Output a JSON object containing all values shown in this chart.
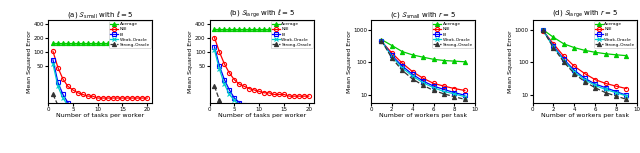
{
  "subplot_titles": [
    "(a) $\\mathcal{S}_{\\mathrm{small}}$ with $\\ell = 5$",
    "(b) $\\mathcal{S}_{\\mathrm{large}}$ with $\\ell = 5$",
    "(c) $\\mathcal{S}_{\\mathrm{small}}$ with $r = 5$",
    "(d) $\\mathcal{S}_{\\mathrm{large}}$ with $r = 5$"
  ],
  "xlabels": [
    "Number of tasks per worker",
    "Number of tasks per worker",
    "Number of workers per task",
    "Number of workers per task"
  ],
  "ylabel": "Mean Squared Error",
  "legend_labels": [
    "Average",
    "NBI",
    "BI",
    "Weak-Oracle",
    "Strong-Oracle"
  ],
  "colors": [
    "#00cc00",
    "#ff0000",
    "#0000ff",
    "#00cccc",
    "#333333"
  ],
  "markers": [
    "^",
    "o",
    "s",
    "x",
    "^"
  ],
  "ab_x": [
    1,
    2,
    3,
    4,
    5,
    6,
    7,
    8,
    9,
    10,
    11,
    12,
    13,
    14,
    15,
    16,
    17,
    18,
    19,
    20
  ],
  "cd_x": [
    1,
    2,
    3,
    4,
    5,
    6,
    7,
    8,
    9
  ],
  "a_average": [
    155,
    155,
    155,
    155,
    155,
    155,
    155,
    155,
    155,
    155,
    155,
    155,
    155,
    155,
    155,
    155,
    155,
    155,
    155,
    155
  ],
  "a_nbi": [
    104,
    46,
    26,
    18,
    15,
    13,
    12,
    11,
    11,
    10,
    10,
    10,
    10,
    10,
    10,
    10,
    10,
    10,
    10,
    10
  ],
  "a_bi": [
    68,
    22,
    12,
    8,
    6,
    5,
    4.5,
    4,
    4,
    4,
    4,
    4,
    3.5,
    3.5,
    3.5,
    3.5,
    3.5,
    3.5,
    3.5,
    3.5
  ],
  "a_weak": [
    55,
    18,
    10,
    7,
    5,
    4,
    3.5,
    3.2,
    3,
    3,
    3,
    3,
    3,
    3,
    3,
    3,
    3,
    3,
    3,
    3
  ],
  "a_strong": [
    12,
    7,
    5,
    4,
    3.5,
    3,
    3,
    3,
    3,
    3,
    2.5,
    2.5,
    2.5,
    2.5,
    2.5,
    2.5,
    2.5,
    2.5,
    2.5,
    2.5
  ],
  "b_average": [
    320,
    320,
    320,
    320,
    320,
    320,
    320,
    320,
    320,
    320,
    320,
    320,
    320,
    320,
    320,
    320,
    320,
    320,
    320,
    320
  ],
  "b_nbi": [
    205,
    100,
    55,
    35,
    25,
    20,
    18,
    16,
    15,
    14,
    13,
    13,
    12,
    12,
    12,
    11,
    11,
    11,
    11,
    11
  ],
  "b_bi": [
    130,
    50,
    25,
    15,
    10,
    8,
    7,
    6,
    5.5,
    5,
    5,
    5,
    4.5,
    4.5,
    4.5,
    4.5,
    4.5,
    4.5,
    4.5,
    4.5
  ],
  "b_weak": [
    110,
    42,
    20,
    12,
    9,
    7,
    6,
    5,
    4.5,
    4,
    4,
    4,
    4,
    4,
    4,
    4,
    4,
    4,
    4,
    4
  ],
  "b_strong": [
    18,
    9,
    6,
    5,
    4,
    3.5,
    3,
    3,
    3,
    3,
    3,
    3,
    3,
    3,
    3,
    3,
    3,
    3,
    3,
    3
  ],
  "c_average": [
    500,
    330,
    215,
    170,
    145,
    125,
    115,
    110,
    105
  ],
  "c_nbi": [
    440,
    195,
    95,
    52,
    33,
    23,
    19,
    16,
    14
  ],
  "c_bi": [
    455,
    165,
    77,
    43,
    27,
    19,
    15,
    12,
    10
  ],
  "c_weak": [
    465,
    150,
    68,
    38,
    24,
    17,
    13,
    11,
    9
  ],
  "c_strong": [
    465,
    135,
    57,
    31,
    20,
    14,
    11,
    9,
    7.5
  ],
  "d_average": [
    1000,
    590,
    370,
    285,
    235,
    205,
    185,
    172,
    162
  ],
  "d_nbi": [
    940,
    370,
    155,
    77,
    46,
    30,
    23,
    19,
    16
  ],
  "d_bi": [
    960,
    320,
    125,
    58,
    33,
    22,
    17,
    13,
    10
  ],
  "d_weak": [
    960,
    300,
    115,
    52,
    30,
    20,
    15,
    12,
    9.5
  ],
  "d_strong": [
    960,
    285,
    103,
    46,
    26,
    17,
    12,
    9.5,
    7.5
  ]
}
